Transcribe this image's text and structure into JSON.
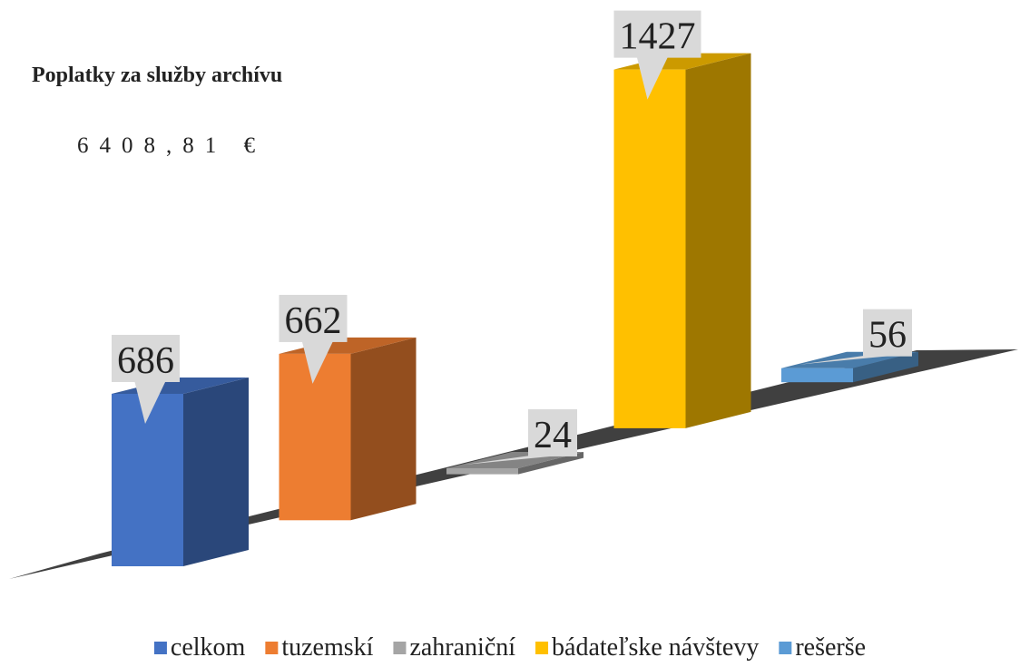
{
  "chart_data": {
    "type": "bar",
    "title": "Poplatky za služby archívu",
    "subtitle": "6408,81 €",
    "series": [
      {
        "name": "celkom",
        "color": "#4472c4",
        "values": [
          686
        ]
      },
      {
        "name": "tuzemskí",
        "color": "#ed7d31",
        "values": [
          662
        ]
      },
      {
        "name": "zahraniční",
        "color": "#a5a5a5",
        "values": [
          24
        ]
      },
      {
        "name": "bádateľske návštevy",
        "color": "#ffc000",
        "values": [
          1427
        ]
      },
      {
        "name": "rešerše",
        "color": "#5b9bd5",
        "values": [
          56
        ]
      }
    ]
  }
}
